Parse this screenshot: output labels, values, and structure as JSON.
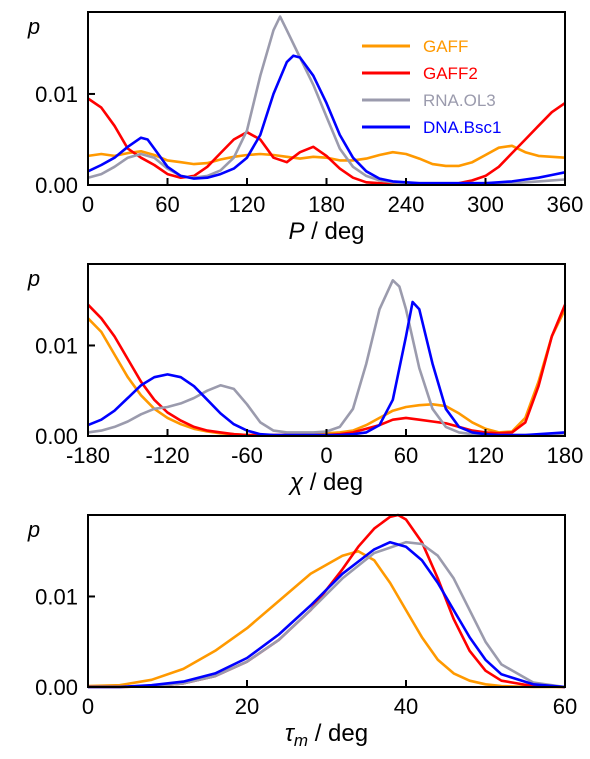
{
  "colors": {
    "GAFF": "#ff9900",
    "GAFF2": "#ff0000",
    "RNA.OL3": "#9b9bad",
    "DNA.Bsc1": "#0000ff"
  },
  "chart_data": [
    {
      "type": "line",
      "ylabel": "p",
      "xlabel_var": "P",
      "xlabel_unit": " / deg",
      "xlim": [
        0,
        360
      ],
      "ylim": [
        0,
        0.019
      ],
      "xticks": [
        "0",
        "60",
        "120",
        "180",
        "240",
        "300",
        "360"
      ],
      "xtick_values": [
        0,
        60,
        120,
        180,
        240,
        300,
        360
      ],
      "yticks": [
        "0.00",
        "0.01"
      ],
      "ytick_values": [
        0,
        0.01
      ],
      "legend": [
        "GAFF",
        "GAFF2",
        "RNA.OL3",
        "DNA.Bsc1"
      ],
      "legend_position": "top-right",
      "series": [
        {
          "name": "GAFF",
          "x": [
            0,
            10,
            20,
            30,
            40,
            50,
            60,
            70,
            80,
            90,
            100,
            110,
            120,
            130,
            140,
            150,
            160,
            170,
            180,
            190,
            200,
            210,
            220,
            230,
            240,
            250,
            260,
            270,
            280,
            290,
            300,
            310,
            320,
            330,
            340,
            350,
            360
          ],
          "y": [
            0.0032,
            0.0034,
            0.0032,
            0.0035,
            0.0037,
            0.0033,
            0.0027,
            0.0025,
            0.0023,
            0.0024,
            0.0028,
            0.0031,
            0.0033,
            0.0034,
            0.0033,
            0.0031,
            0.0029,
            0.0031,
            0.003,
            0.0027,
            0.0027,
            0.0029,
            0.0033,
            0.0036,
            0.0034,
            0.0029,
            0.0023,
            0.0021,
            0.0021,
            0.0025,
            0.0033,
            0.0041,
            0.0043,
            0.0036,
            0.0032,
            0.0031,
            0.003
          ]
        },
        {
          "name": "GAFF2",
          "x": [
            0,
            10,
            20,
            30,
            40,
            50,
            60,
            70,
            80,
            90,
            100,
            110,
            120,
            130,
            140,
            150,
            160,
            170,
            180,
            190,
            200,
            210,
            220,
            230,
            240,
            250,
            260,
            270,
            280,
            290,
            300,
            310,
            320,
            330,
            340,
            350,
            360
          ],
          "y": [
            0.0095,
            0.0085,
            0.0065,
            0.004,
            0.003,
            0.0022,
            0.0012,
            0.0008,
            0.001,
            0.002,
            0.0035,
            0.005,
            0.0058,
            0.005,
            0.003,
            0.0025,
            0.0036,
            0.0042,
            0.0032,
            0.0018,
            0.0008,
            0.0003,
            0.0002,
            0.0001,
            0.0001,
            0.0001,
            0.0001,
            0.0001,
            0.0002,
            0.0005,
            0.001,
            0.002,
            0.0035,
            0.005,
            0.0065,
            0.008,
            0.009
          ]
        },
        {
          "name": "RNA.OL3",
          "x": [
            0,
            10,
            20,
            30,
            40,
            50,
            60,
            70,
            80,
            90,
            100,
            110,
            120,
            130,
            140,
            145,
            150,
            160,
            170,
            180,
            190,
            200,
            210,
            220,
            230,
            240,
            250,
            260,
            270,
            280,
            290,
            300,
            310,
            320,
            330,
            340,
            350,
            360
          ],
          "y": [
            0.0008,
            0.0012,
            0.002,
            0.003,
            0.0034,
            0.003,
            0.0018,
            0.001,
            0.0008,
            0.001,
            0.0016,
            0.003,
            0.006,
            0.012,
            0.017,
            0.0185,
            0.017,
            0.014,
            0.011,
            0.0075,
            0.004,
            0.002,
            0.001,
            0.0005,
            0.0003,
            0.0002,
            0.0002,
            0.0002,
            0.0002,
            0.0002,
            0.0002,
            0.0002,
            0.0002,
            0.0002,
            0.0003,
            0.0004,
            0.0005,
            0.0006
          ]
        },
        {
          "name": "DNA.Bsc1",
          "x": [
            0,
            10,
            20,
            30,
            40,
            45,
            50,
            60,
            70,
            80,
            90,
            100,
            110,
            120,
            130,
            140,
            150,
            155,
            160,
            170,
            180,
            190,
            200,
            210,
            220,
            230,
            240,
            250,
            260,
            270,
            280,
            290,
            300,
            310,
            320,
            330,
            340,
            350,
            360
          ],
          "y": [
            0.0015,
            0.0022,
            0.003,
            0.0042,
            0.0052,
            0.005,
            0.004,
            0.002,
            0.001,
            0.0007,
            0.0008,
            0.0012,
            0.0018,
            0.003,
            0.0055,
            0.01,
            0.0135,
            0.0142,
            0.014,
            0.012,
            0.009,
            0.0055,
            0.003,
            0.0015,
            0.0007,
            0.0004,
            0.0003,
            0.0002,
            0.0002,
            0.0002,
            0.0002,
            0.0002,
            0.0002,
            0.0003,
            0.0004,
            0.0006,
            0.0008,
            0.0011,
            0.0014
          ]
        }
      ]
    },
    {
      "type": "line",
      "ylabel": "p",
      "xlabel_var": "χ",
      "xlabel_unit": " / deg",
      "xlim": [
        -180,
        180
      ],
      "ylim": [
        0,
        0.019
      ],
      "xticks": [
        "-180",
        "-120",
        "-60",
        "0",
        "60",
        "120",
        "180"
      ],
      "xtick_values": [
        -180,
        -120,
        -60,
        0,
        60,
        120,
        180
      ],
      "yticks": [
        "0.00",
        "0.01"
      ],
      "ytick_values": [
        0,
        0.01
      ],
      "series": [
        {
          "name": "GAFF",
          "x": [
            -180,
            -170,
            -160,
            -150,
            -140,
            -130,
            -120,
            -110,
            -100,
            -90,
            -80,
            -70,
            -60,
            -50,
            -40,
            -30,
            -20,
            -10,
            0,
            10,
            20,
            30,
            40,
            50,
            60,
            70,
            80,
            90,
            100,
            110,
            120,
            130,
            140,
            150,
            160,
            170,
            180
          ],
          "y": [
            0.013,
            0.0115,
            0.009,
            0.0065,
            0.0045,
            0.003,
            0.002,
            0.0013,
            0.0008,
            0.0005,
            0.0003,
            0.0002,
            0.0001,
            0.0001,
            0.0001,
            0.0001,
            0.0001,
            0.0002,
            0.0003,
            0.0004,
            0.0006,
            0.0012,
            0.002,
            0.0028,
            0.0032,
            0.0034,
            0.0035,
            0.0033,
            0.0025,
            0.0015,
            0.0008,
            0.0004,
            0.0005,
            0.002,
            0.006,
            0.011,
            0.014
          ]
        },
        {
          "name": "GAFF2",
          "x": [
            -180,
            -170,
            -160,
            -150,
            -140,
            -130,
            -120,
            -110,
            -100,
            -90,
            -80,
            -70,
            -60,
            -50,
            -40,
            -30,
            -20,
            -10,
            0,
            10,
            20,
            30,
            40,
            50,
            60,
            70,
            80,
            90,
            100,
            110,
            120,
            130,
            140,
            150,
            160,
            170,
            180
          ],
          "y": [
            0.0145,
            0.013,
            0.011,
            0.0085,
            0.006,
            0.004,
            0.0026,
            0.0017,
            0.001,
            0.0006,
            0.0004,
            0.0002,
            0.0001,
            0.0001,
            0.0001,
            0.0001,
            0.0001,
            0.0001,
            0.0001,
            0.0002,
            0.0004,
            0.0008,
            0.0012,
            0.0018,
            0.002,
            0.0018,
            0.0016,
            0.0014,
            0.001,
            0.0006,
            0.0004,
            0.0003,
            0.0004,
            0.0015,
            0.0055,
            0.011,
            0.0145
          ]
        },
        {
          "name": "RNA.OL3",
          "x": [
            -180,
            -170,
            -160,
            -150,
            -140,
            -130,
            -120,
            -110,
            -100,
            -90,
            -80,
            -70,
            -60,
            -50,
            -40,
            -30,
            -20,
            -10,
            0,
            10,
            20,
            30,
            40,
            50,
            55,
            60,
            70,
            80,
            90,
            100,
            110,
            120,
            130,
            140,
            150,
            160,
            170,
            180
          ],
          "y": [
            0.0004,
            0.0006,
            0.001,
            0.0016,
            0.0024,
            0.003,
            0.0032,
            0.0036,
            0.0042,
            0.005,
            0.0056,
            0.0052,
            0.0035,
            0.0015,
            0.0006,
            0.0004,
            0.0004,
            0.0004,
            0.0005,
            0.001,
            0.003,
            0.008,
            0.014,
            0.0172,
            0.0165,
            0.014,
            0.0075,
            0.003,
            0.001,
            0.0004,
            0.0002,
            0.0001,
            0.0001,
            0.0001,
            0.0001,
            0.0001,
            0.0002,
            0.0003
          ]
        },
        {
          "name": "DNA.Bsc1",
          "x": [
            -180,
            -170,
            -160,
            -150,
            -140,
            -130,
            -120,
            -110,
            -100,
            -90,
            -80,
            -70,
            -60,
            -50,
            -40,
            -30,
            -20,
            -10,
            0,
            10,
            20,
            30,
            40,
            50,
            60,
            65,
            70,
            80,
            90,
            100,
            110,
            120,
            130,
            140,
            150,
            160,
            170,
            180
          ],
          "y": [
            0.0012,
            0.0018,
            0.0028,
            0.0042,
            0.0056,
            0.0065,
            0.0068,
            0.0065,
            0.0055,
            0.004,
            0.0025,
            0.0013,
            0.0006,
            0.0002,
            0.0001,
            0.0001,
            0.0001,
            0.0001,
            0.0001,
            0.0001,
            0.0002,
            0.0004,
            0.0012,
            0.004,
            0.011,
            0.0148,
            0.014,
            0.008,
            0.003,
            0.001,
            0.0004,
            0.0002,
            0.0001,
            0.0001,
            0.0001,
            0.0002,
            0.0003,
            0.0004
          ]
        }
      ]
    },
    {
      "type": "line",
      "ylabel": "p",
      "xlabel_var": "τm",
      "xlabel_unit": " / deg",
      "xlim": [
        0,
        60
      ],
      "ylim": [
        0,
        0.019
      ],
      "xticks": [
        "0",
        "20",
        "40",
        "60"
      ],
      "xtick_values": [
        0,
        20,
        40,
        60
      ],
      "yticks": [
        "0.00",
        "0.01"
      ],
      "ytick_values": [
        0,
        0.01
      ],
      "series": [
        {
          "name": "GAFF",
          "x": [
            0,
            4,
            8,
            12,
            16,
            20,
            24,
            28,
            32,
            34,
            36,
            38,
            40,
            42,
            44,
            46,
            48,
            50,
            52,
            56,
            60
          ],
          "y": [
            0.0001,
            0.0002,
            0.0008,
            0.002,
            0.004,
            0.0065,
            0.0095,
            0.0125,
            0.0145,
            0.015,
            0.014,
            0.0115,
            0.0085,
            0.0055,
            0.003,
            0.0015,
            0.0007,
            0.0003,
            0.0001,
            0.0,
            0.0
          ]
        },
        {
          "name": "GAFF2",
          "x": [
            0,
            4,
            8,
            12,
            16,
            20,
            24,
            28,
            32,
            34,
            36,
            38,
            39,
            40,
            42,
            44,
            46,
            48,
            50,
            52,
            56,
            60
          ],
          "y": [
            0.0,
            0.0,
            0.0001,
            0.0004,
            0.0012,
            0.0028,
            0.0052,
            0.0085,
            0.013,
            0.0155,
            0.0175,
            0.0188,
            0.019,
            0.0185,
            0.016,
            0.012,
            0.0075,
            0.004,
            0.0018,
            0.0007,
            0.0001,
            0.0
          ]
        },
        {
          "name": "RNA.OL3",
          "x": [
            0,
            4,
            8,
            12,
            16,
            20,
            24,
            28,
            32,
            36,
            40,
            42,
            44,
            46,
            48,
            50,
            52,
            56,
            60
          ],
          "y": [
            0.0,
            0.0,
            0.0001,
            0.0004,
            0.0012,
            0.0028,
            0.0052,
            0.0085,
            0.012,
            0.0148,
            0.016,
            0.0158,
            0.0145,
            0.012,
            0.0085,
            0.005,
            0.0025,
            0.0005,
            0.0
          ]
        },
        {
          "name": "DNA.Bsc1",
          "x": [
            0,
            4,
            8,
            12,
            16,
            20,
            24,
            28,
            32,
            36,
            38,
            40,
            42,
            44,
            46,
            48,
            50,
            52,
            56,
            60
          ],
          "y": [
            0.0,
            0.0,
            0.0002,
            0.0006,
            0.0015,
            0.0032,
            0.0058,
            0.009,
            0.0125,
            0.0152,
            0.016,
            0.0155,
            0.014,
            0.0115,
            0.0085,
            0.0055,
            0.003,
            0.0014,
            0.0003,
            0.0
          ]
        }
      ]
    }
  ]
}
